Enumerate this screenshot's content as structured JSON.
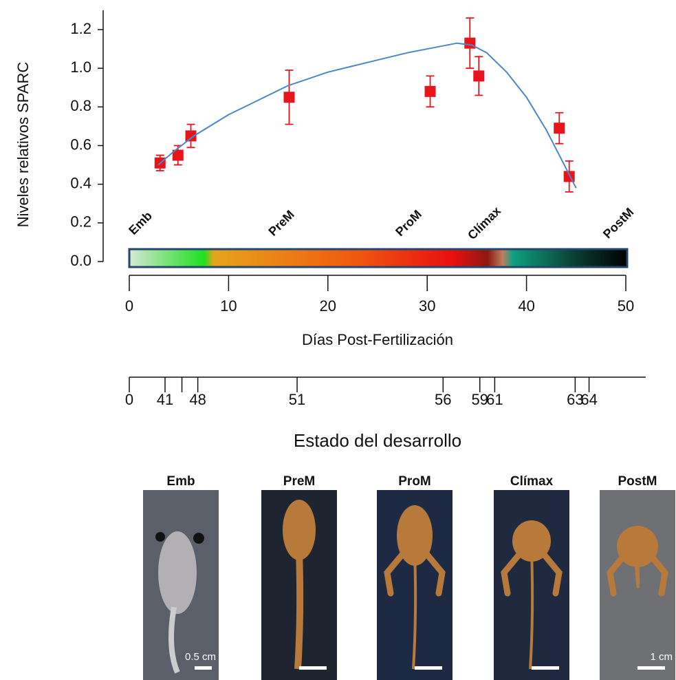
{
  "chart_data": {
    "type": "scatter",
    "ylabel": "Niveles relativos SPARC",
    "xlabel": "Días Post-Fertilización",
    "xlim": [
      0,
      50
    ],
    "xticks": [
      0,
      10,
      20,
      30,
      40,
      50
    ],
    "ylim": [
      0,
      1.3
    ],
    "yticks": [
      {
        "value": 0,
        "label": "0.0"
      },
      {
        "value": 0.2,
        "label": "0.2"
      },
      {
        "value": 0.4,
        "label": "0.4"
      },
      {
        "value": 0.6,
        "label": "0.6"
      },
      {
        "value": 0.8,
        "label": "0.8"
      },
      {
        "value": 1.0,
        "label": "1.0"
      },
      {
        "value": 1.2,
        "label": "1.2"
      }
    ],
    "series": [
      {
        "type": "scatter",
        "color": "#e8141c",
        "x": [
          3.1,
          4.9,
          6.2,
          16.1,
          30.3,
          34.3,
          35.2,
          43.3,
          44.3
        ],
        "values": [
          0.51,
          0.55,
          0.65,
          0.85,
          0.88,
          1.13,
          0.96,
          0.69,
          0.44
        ],
        "errors": [
          0.04,
          0.05,
          0.06,
          0.14,
          0.08,
          0.13,
          0.1,
          0.08,
          0.08
        ]
      },
      {
        "type": "line",
        "color": "#4a86c8",
        "x": [
          2.9,
          4.5,
          6.5,
          10,
          16,
          20,
          24,
          28,
          31,
          33,
          34.5,
          36,
          38,
          40,
          42,
          44,
          45
        ],
        "values": [
          0.5,
          0.57,
          0.65,
          0.76,
          0.91,
          0.98,
          1.03,
          1.08,
          1.11,
          1.13,
          1.12,
          1.08,
          0.98,
          0.85,
          0.68,
          0.48,
          0.38
        ]
      }
    ],
    "stages": [
      "Emb",
      "PreM",
      "ProM",
      "Clímax",
      "PostM"
    ],
    "stage_xlim": [
      0,
      52
    ],
    "stage_ticks": [
      {
        "value": 0,
        "label": "0"
      },
      {
        "value": 3.6,
        "label": "41"
      },
      {
        "value": 5.3,
        "label": null
      },
      {
        "value": 6.9,
        "label": "48"
      },
      {
        "value": 16.9,
        "label": "51"
      },
      {
        "value": 31.6,
        "label": "56"
      },
      {
        "value": 35.3,
        "label": "59"
      },
      {
        "value": 36.8,
        "label": "61"
      },
      {
        "value": 44.9,
        "label": "63"
      },
      {
        "value": 46.3,
        "label": "64"
      }
    ],
    "stage_title": "Estado del desarrollo"
  },
  "panels": [
    {
      "title": "Emb",
      "scale": "0.5 cm"
    },
    {
      "title": "PreM",
      "scale": null
    },
    {
      "title": "ProM",
      "scale": null
    },
    {
      "title": "Clímax",
      "scale": null
    },
    {
      "title": "PostM",
      "scale": "1 cm"
    }
  ]
}
